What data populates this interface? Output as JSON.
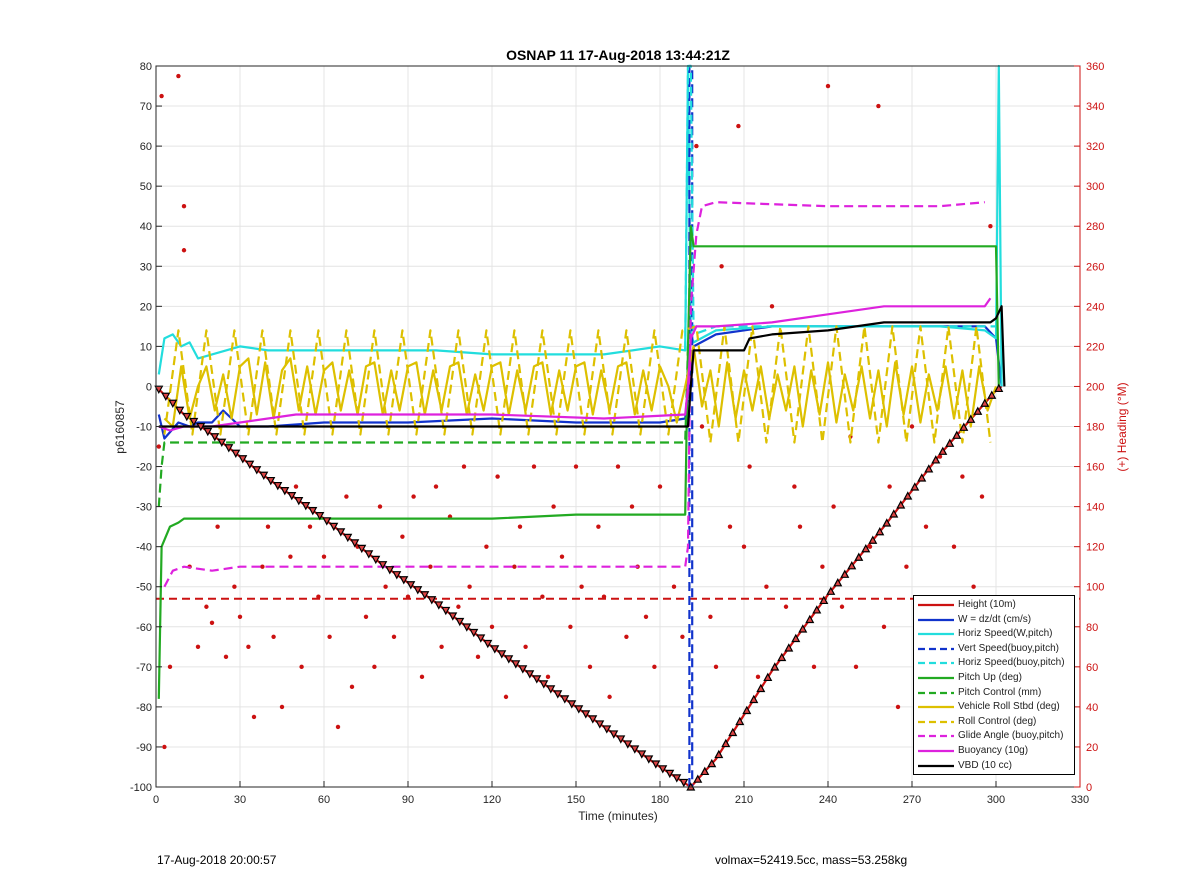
{
  "chart_data": {
    "type": "line",
    "title": "OSNAP 11 17-Aug-2018 13:44:21Z",
    "xlabel": "Time (minutes)",
    "ylabel_left": "p6160857",
    "ylabel_right": "(+) Heading (°M)",
    "xlim": [
      0,
      330
    ],
    "ylim_left": [
      -100,
      80
    ],
    "ylim_right": [
      0,
      360
    ],
    "x_ticks": [
      "0",
      "30",
      "60",
      "90",
      "120",
      "150",
      "180",
      "210",
      "240",
      "270",
      "300",
      "330"
    ],
    "y_ticks_left": [
      "80",
      "70",
      "60",
      "50",
      "40",
      "30",
      "20",
      "10",
      "0",
      "-10",
      "-20",
      "-30",
      "-40",
      "-50",
      "-60",
      "-70",
      "-80",
      "-90",
      "-100"
    ],
    "y_ticks_right": [
      "360",
      "340",
      "320",
      "300",
      "280",
      "260",
      "240",
      "220",
      "200",
      "180",
      "160",
      "140",
      "120",
      "100",
      "80",
      "60",
      "40",
      "20",
      "0"
    ],
    "grid": true,
    "legend_position": "bottom-right",
    "series": [
      {
        "name": "Height (10m)",
        "color": "#cc1111",
        "style": "solid",
        "x": [
          0,
          10,
          20,
          40,
          60,
          80,
          100,
          120,
          140,
          160,
          180,
          191,
          200,
          220,
          240,
          260,
          280,
          300,
          302
        ],
        "y": [
          0,
          -7,
          -12,
          -23,
          -33,
          -44,
          -54,
          -65,
          -75,
          -85,
          -95,
          -100,
          -93,
          -71,
          -52,
          -35,
          -17,
          -1,
          0
        ]
      },
      {
        "name": "W = dz/dt (cm/s)",
        "color": "#1133cc",
        "style": "solid",
        "x": [
          1,
          3,
          8,
          12,
          15,
          20,
          24,
          30,
          40,
          60,
          90,
          120,
          150,
          180,
          189,
          192,
          200,
          220,
          240,
          260,
          280,
          296,
          300,
          302
        ],
        "y": [
          -7,
          -13,
          -9,
          -10,
          -9,
          -9,
          -6,
          -10,
          -10,
          -9,
          -9,
          -8,
          -9,
          -9,
          -8,
          10,
          13,
          15,
          15,
          15,
          15,
          15,
          12,
          0
        ]
      },
      {
        "name": "Horiz Speed(W,pitch)",
        "color": "#22dddd",
        "style": "solid",
        "x": [
          1,
          3,
          6,
          9,
          12,
          15,
          20,
          30,
          40,
          60,
          80,
          100,
          120,
          140,
          160,
          180,
          189,
          190,
          191,
          192,
          200,
          220,
          240,
          260,
          280,
          296,
          300,
          301,
          302
        ],
        "y": [
          3,
          12,
          13,
          10,
          11,
          7,
          8,
          10,
          9,
          9,
          9,
          9,
          8,
          8,
          8,
          10,
          9,
          80,
          13,
          11,
          14,
          15,
          15,
          15,
          15,
          14,
          12,
          80,
          0
        ]
      },
      {
        "name": "Vert Speed(buoy,pitch)",
        "color": "#1133cc",
        "style": "dashed",
        "x": [
          190.5,
          190.5,
          191.5,
          191.5
        ],
        "y": [
          -100,
          80,
          80,
          -100
        ]
      },
      {
        "name": "Horiz Speed(buoy,pitch)",
        "color": "#22dddd",
        "style": "dashed",
        "x": [
          189,
          190,
          191,
          192,
          200,
          240,
          280,
          300
        ],
        "y": [
          9,
          80,
          80,
          13,
          15,
          15,
          15,
          15
        ]
      },
      {
        "name": "Pitch Up (deg)",
        "color": "#22aa22",
        "style": "solid",
        "x": [
          1,
          2,
          5,
          8,
          10,
          20,
          40,
          60,
          90,
          120,
          150,
          180,
          189,
          190,
          191,
          192,
          195,
          210,
          240,
          270,
          296,
          300,
          301
        ],
        "y": [
          -78,
          -40,
          -35,
          -34,
          -33,
          -33,
          -33,
          -33,
          -33,
          -33,
          -32,
          -32,
          -32,
          10,
          40,
          35,
          35,
          35,
          35,
          35,
          35,
          35,
          0
        ]
      },
      {
        "name": "Pitch Control (mm)",
        "color": "#22aa22",
        "style": "dashed",
        "x": [
          1,
          2,
          3,
          10,
          60,
          120,
          180,
          189,
          190
        ],
        "y": [
          -30,
          -20,
          -14,
          -14,
          -14,
          -14,
          -14,
          -14,
          10
        ]
      },
      {
        "name": "Vehicle Roll Stbd (deg)",
        "color": "#ddc000",
        "style": "solid",
        "x": [
          3,
          6,
          9,
          12,
          15,
          18,
          21,
          24,
          27,
          30,
          33,
          36,
          39,
          42,
          45,
          48,
          51,
          54,
          57,
          60,
          63,
          66,
          69,
          72,
          75,
          78,
          81,
          84,
          87,
          90,
          93,
          96,
          99,
          102,
          105,
          108,
          111,
          114,
          117,
          120,
          123,
          126,
          129,
          132,
          135,
          138,
          141,
          144,
          147,
          150,
          153,
          156,
          159,
          162,
          165,
          168,
          171,
          174,
          177,
          180,
          183,
          186,
          189,
          192,
          195,
          198,
          201,
          204,
          207,
          210,
          213,
          216,
          219,
          222,
          225,
          228,
          231,
          234,
          237,
          240,
          243,
          246,
          249,
          252,
          255,
          258,
          261,
          264,
          267,
          270,
          273,
          276,
          279,
          282,
          285,
          288,
          291,
          294,
          297,
          300
        ],
        "y": [
          -8,
          -10,
          5,
          -8,
          0,
          5,
          -6,
          3,
          -8,
          5,
          7,
          -7,
          6,
          -8,
          4,
          7,
          -6,
          5,
          -7,
          4,
          6,
          -6,
          4,
          -7,
          5,
          6,
          -7,
          4,
          -6,
          5,
          6,
          -7,
          4,
          -6,
          5,
          6,
          -7,
          3,
          -6,
          5,
          6,
          -7,
          4,
          -6,
          5,
          6,
          -7,
          4,
          -6,
          5,
          6,
          -7,
          4,
          -6,
          5,
          6,
          -7,
          4,
          -6,
          5,
          0,
          -9,
          0,
          10,
          -5,
          4,
          -10,
          6,
          -8,
          4,
          -6,
          5,
          -8,
          3,
          -6,
          5,
          -10,
          4,
          -7,
          6,
          -9,
          3,
          -6,
          5,
          -8,
          4,
          -10,
          6,
          -7,
          5,
          -9,
          3,
          -6,
          5,
          -8,
          4,
          -10,
          5,
          -6,
          0
        ]
      },
      {
        "name": "Roll Control (deg)",
        "color": "#ddc000",
        "style": "dashed",
        "x": [
          3,
          8,
          13,
          18,
          23,
          28,
          33,
          38,
          43,
          48,
          53,
          58,
          63,
          68,
          73,
          78,
          83,
          88,
          93,
          98,
          103,
          108,
          113,
          118,
          123,
          128,
          133,
          138,
          143,
          148,
          153,
          158,
          163,
          168,
          173,
          178,
          183,
          188,
          193,
          198,
          203,
          208,
          213,
          218,
          223,
          228,
          233,
          238,
          243,
          248,
          253,
          258,
          263,
          268,
          273,
          278,
          283,
          288,
          293,
          298
        ],
        "y": [
          -12,
          14,
          -12,
          14,
          -12,
          14,
          -12,
          14,
          -12,
          14,
          -12,
          14,
          -12,
          14,
          -12,
          14,
          -12,
          14,
          -12,
          14,
          -12,
          14,
          -12,
          14,
          -12,
          14,
          -12,
          14,
          -12,
          14,
          -12,
          14,
          -12,
          14,
          -12,
          14,
          -12,
          14,
          15,
          -14,
          15,
          -14,
          15,
          -14,
          15,
          -14,
          15,
          -14,
          15,
          -14,
          15,
          -14,
          15,
          -14,
          15,
          -14,
          15,
          -14,
          15,
          -14
        ]
      },
      {
        "name": "Glide Angle (buoy,pitch)",
        "color": "#dd22dd",
        "style": "dashed",
        "x": [
          3,
          6,
          10,
          20,
          30,
          60,
          90,
          120,
          150,
          180,
          189,
          190,
          191,
          193,
          195,
          200,
          240,
          280,
          296
        ],
        "y": [
          -50,
          -46,
          -45,
          -46,
          -45,
          -45,
          -45,
          -45,
          -45,
          -45,
          -45,
          -40,
          20,
          38,
          45,
          46,
          45,
          45,
          46
        ]
      },
      {
        "name": "Buoyancy (10g)",
        "color": "#dd22dd",
        "style": "solid",
        "x": [
          1,
          5,
          10,
          20,
          30,
          50,
          80,
          120,
          160,
          189,
          190,
          191,
          193,
          200,
          220,
          240,
          260,
          280,
          296,
          298
        ],
        "y": [
          -10,
          -11,
          -10,
          -10,
          -9,
          -7,
          -7,
          -7,
          -8,
          -7,
          0,
          12,
          15,
          15,
          16,
          18,
          20,
          20,
          20,
          22
        ]
      },
      {
        "name": "VBD (10 cc)",
        "color": "#000000",
        "style": "solid",
        "x": [
          1,
          3,
          5,
          60,
          120,
          180,
          189,
          190,
          191,
          192,
          200,
          210,
          212,
          220,
          240,
          260,
          280,
          298,
          300,
          302,
          303
        ],
        "y": [
          -10,
          -10,
          -10,
          -10,
          -10,
          -10,
          -10,
          -10,
          0,
          9,
          9,
          9,
          12,
          13,
          14,
          16,
          16,
          16,
          17,
          20,
          0
        ]
      }
    ],
    "reference_lines": [
      {
        "color": "#cc1111",
        "style": "dashed",
        "y": -53
      }
    ],
    "heading_scatter": {
      "color": "#cc1111",
      "x": [
        1,
        2,
        3,
        5,
        8,
        10,
        10,
        12,
        15,
        18,
        20,
        22,
        25,
        28,
        30,
        33,
        35,
        38,
        40,
        42,
        45,
        48,
        50,
        52,
        55,
        58,
        60,
        62,
        65,
        68,
        70,
        72,
        75,
        78,
        80,
        82,
        85,
        88,
        90,
        92,
        95,
        98,
        100,
        102,
        105,
        108,
        110,
        112,
        115,
        118,
        120,
        122,
        125,
        128,
        130,
        132,
        135,
        138,
        140,
        142,
        145,
        148,
        150,
        152,
        155,
        158,
        160,
        162,
        165,
        168,
        170,
        172,
        175,
        178,
        180,
        185,
        188,
        193,
        195,
        198,
        200,
        202,
        205,
        208,
        210,
        212,
        215,
        218,
        220,
        225,
        228,
        230,
        235,
        238,
        240,
        242,
        245,
        248,
        250,
        255,
        258,
        260,
        262,
        265,
        268,
        270,
        272,
        275,
        278,
        280,
        282,
        285,
        288,
        290,
        292,
        295,
        298
      ],
      "y": [
        170,
        345,
        20,
        60,
        355,
        290,
        268,
        110,
        70,
        90,
        82,
        130,
        65,
        100,
        85,
        70,
        35,
        110,
        130,
        75,
        40,
        115,
        150,
        60,
        130,
        95,
        115,
        75,
        30,
        145,
        50,
        120,
        85,
        60,
        140,
        100,
        75,
        125,
        95,
        145,
        55,
        110,
        150,
        70,
        135,
        90,
        160,
        100,
        65,
        120,
        80,
        155,
        45,
        110,
        130,
        70,
        160,
        95,
        55,
        140,
        115,
        80,
        160,
        100,
        60,
        130,
        95,
        45,
        160,
        75,
        140,
        110,
        85,
        60,
        150,
        100,
        75,
        320,
        180,
        85,
        60,
        260,
        130,
        330,
        120,
        160,
        55,
        100,
        240,
        90,
        150,
        130,
        60,
        110,
        350,
        140,
        90,
        175,
        60,
        120,
        340,
        80,
        150,
        40,
        110,
        180,
        90,
        130,
        70,
        165,
        60,
        120,
        155,
        40,
        100,
        145,
        280
      ]
    }
  },
  "footer": {
    "left_text": "17-Aug-2018 20:00:57",
    "right_text": "volmax=52419.5cc, mass=53.258kg"
  }
}
